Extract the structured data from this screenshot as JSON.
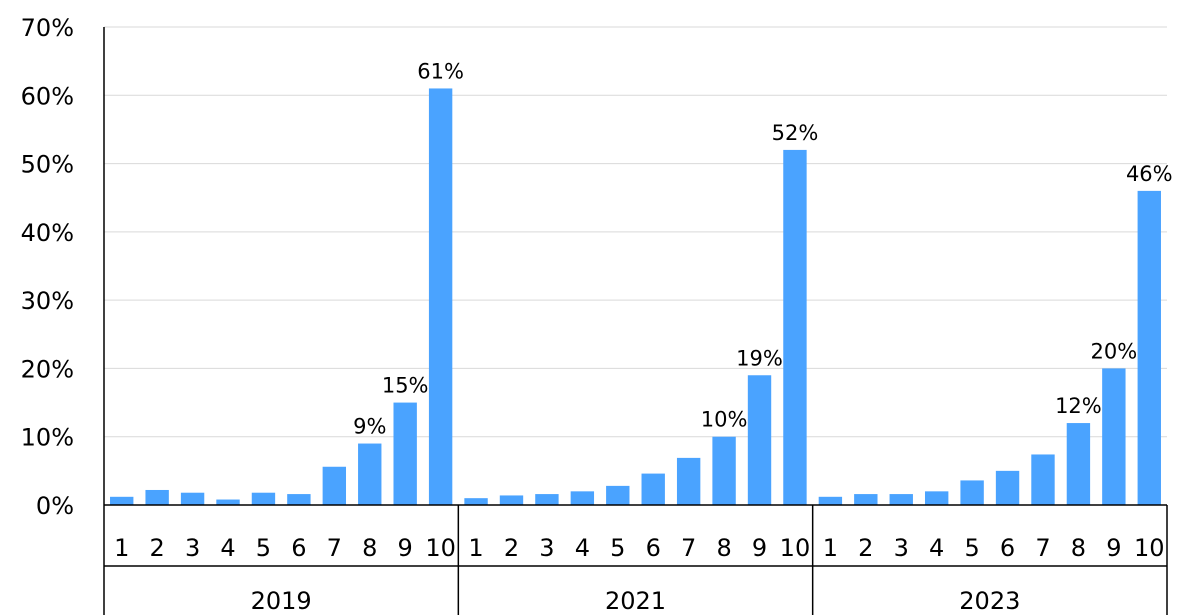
{
  "chart_data": {
    "type": "bar",
    "title": "",
    "xlabel": "",
    "ylabel": "",
    "ylim": [
      0,
      70
    ],
    "y_ticks": [
      "0%",
      "10%",
      "20%",
      "30%",
      "40%",
      "50%",
      "60%",
      "70%"
    ],
    "grid": true,
    "bar_color": "#4aa3ff",
    "groups": [
      {
        "label": "2019",
        "categories": [
          "1",
          "2",
          "3",
          "4",
          "5",
          "6",
          "7",
          "8",
          "9",
          "10"
        ],
        "values": [
          1.2,
          2.2,
          1.8,
          0.8,
          1.8,
          1.6,
          5.6,
          9,
          15,
          61
        ],
        "data_labels": [
          "",
          "",
          "",
          "",
          "",
          "",
          "",
          "9%",
          "15%",
          "61%"
        ]
      },
      {
        "label": "2021",
        "categories": [
          "1",
          "2",
          "3",
          "4",
          "5",
          "6",
          "7",
          "8",
          "9",
          "10"
        ],
        "values": [
          1.0,
          1.4,
          1.6,
          2.0,
          2.8,
          4.6,
          6.9,
          10,
          19,
          52
        ],
        "data_labels": [
          "",
          "",
          "",
          "",
          "",
          "",
          "",
          "10%",
          "19%",
          "52%"
        ]
      },
      {
        "label": "2023",
        "categories": [
          "1",
          "2",
          "3",
          "4",
          "5",
          "6",
          "7",
          "8",
          "9",
          "10"
        ],
        "values": [
          1.2,
          1.6,
          1.6,
          2.0,
          3.6,
          5.0,
          7.4,
          12,
          20,
          46
        ],
        "data_labels": [
          "",
          "",
          "",
          "",
          "",
          "",
          "",
          "12%",
          "20%",
          "46%"
        ]
      }
    ]
  }
}
